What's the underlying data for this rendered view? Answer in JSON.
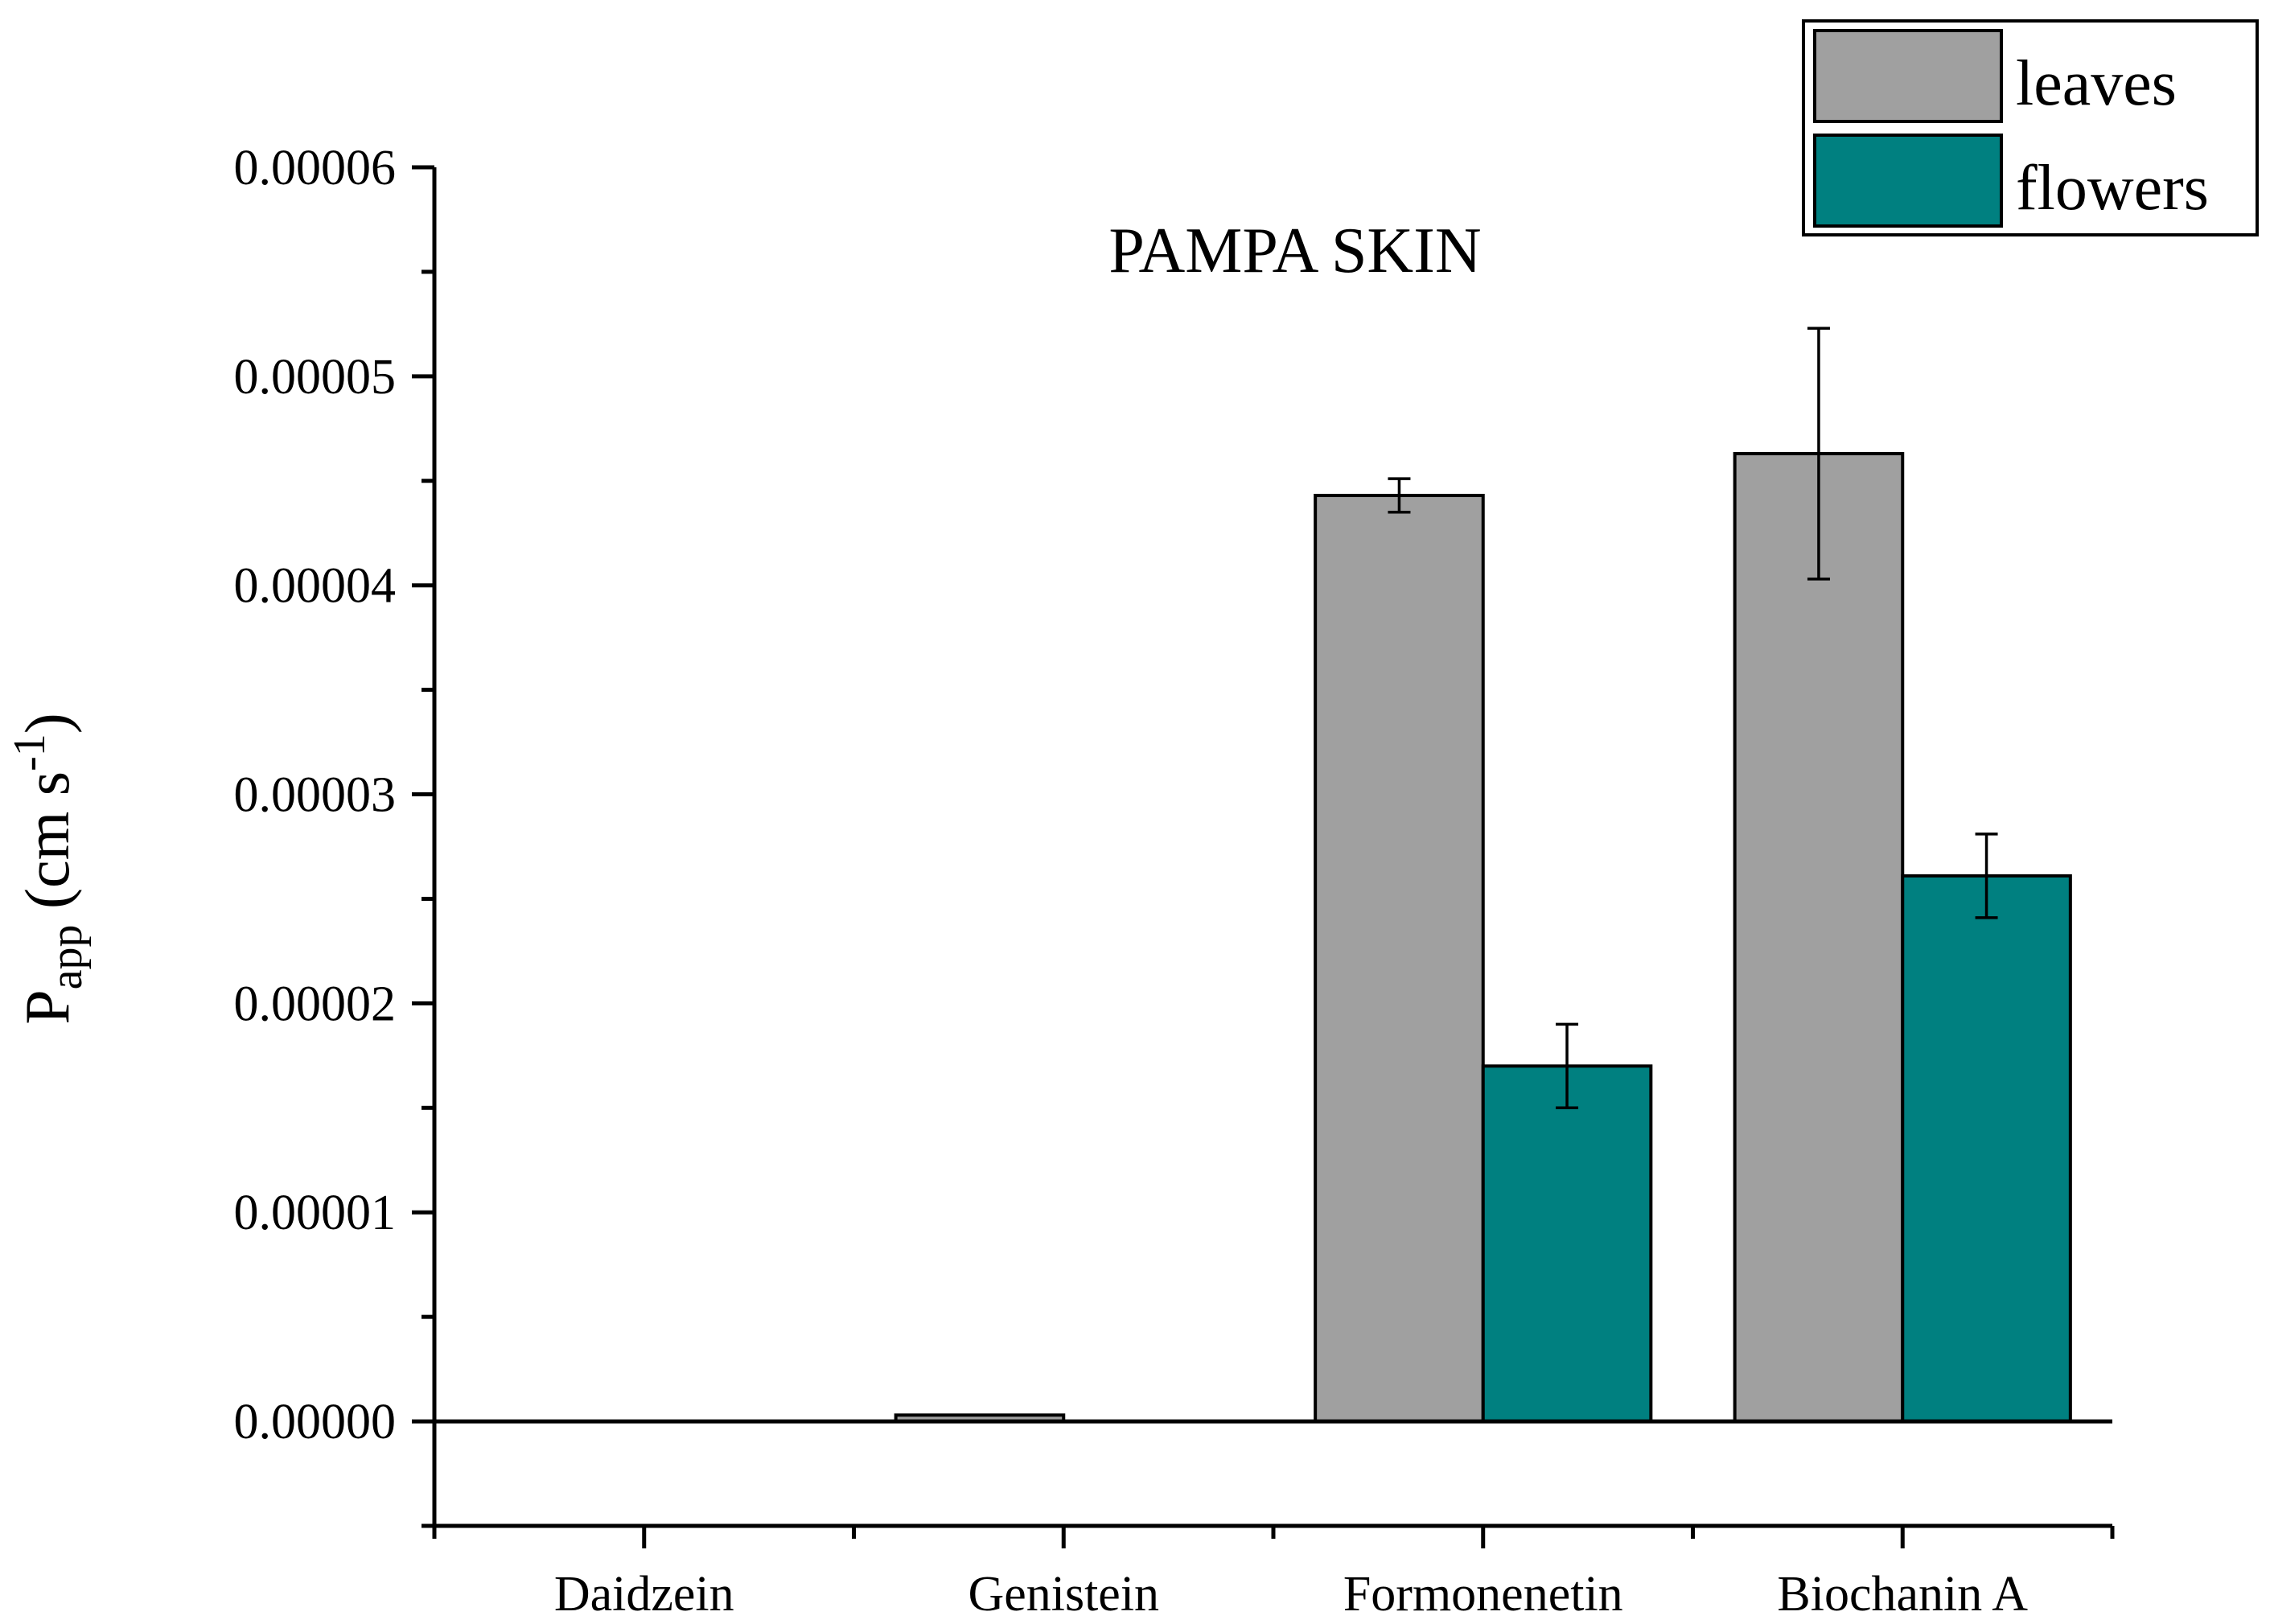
{
  "chart_data": {
    "type": "bar",
    "title": "PAMPA SKIN",
    "ylabel": {
      "main": "P",
      "subscript": "app",
      "units_open": " (cm s",
      "superscript": "-1",
      "units_close": ")"
    },
    "xlabel": "",
    "categories": [
      "Daidzein",
      "Genistein",
      "Formonenetin",
      "Biochanin A"
    ],
    "series": [
      {
        "name": "leaves",
        "color": "#a0a0a0",
        "values": [
          0.0,
          3e-07,
          4.43e-05,
          4.63e-05
        ],
        "errors": [
          0.0,
          0.0,
          8e-07,
          6e-06
        ]
      },
      {
        "name": "flowers",
        "color": "#008080",
        "values": [
          0.0,
          0.0,
          1.7e-05,
          2.61e-05
        ],
        "errors": [
          0.0,
          0.0,
          2e-06,
          2e-06
        ]
      }
    ],
    "ylim": [
      -5e-06,
      6e-05
    ],
    "yticks": [
      0.0,
      1e-05,
      2e-05,
      3e-05,
      4e-05,
      5e-05,
      6e-05
    ],
    "ytick_labels": [
      "0.00000",
      "0.00001",
      "0.00002",
      "0.00003",
      "0.00004",
      "0.00005",
      "0.00006"
    ],
    "legend_position": "top-right",
    "grid": false
  }
}
